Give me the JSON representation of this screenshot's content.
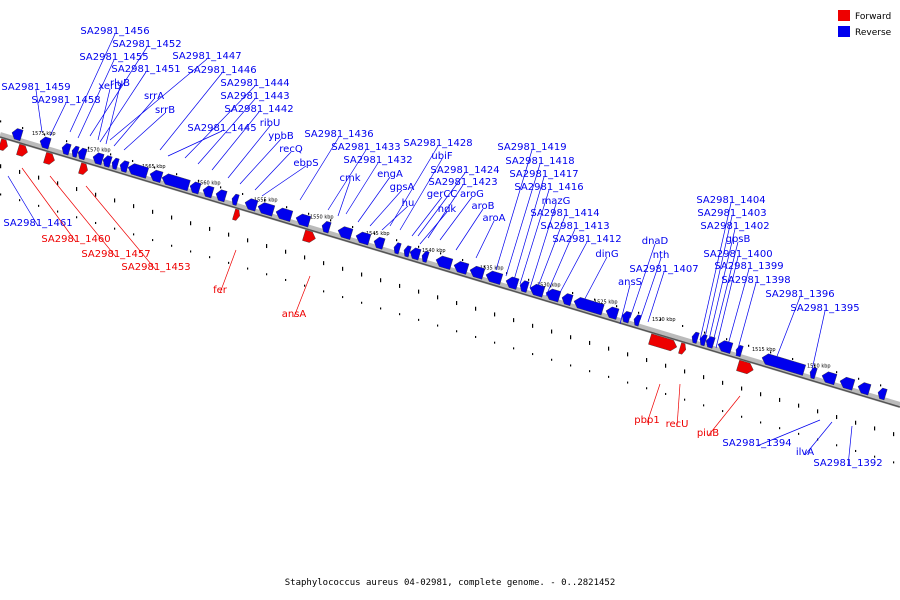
{
  "legend": {
    "forward": {
      "label": "Forward",
      "color": "#ee0000"
    },
    "reverse": {
      "label": "Reverse",
      "color": "#0000ee"
    }
  },
  "caption": "Staphylococcus aureus 04-02981, complete genome. - 0..2821452",
  "ticks": [
    "1575 kbp",
    "1570 kbp",
    "1565 kbp",
    "1560 kbp",
    "1555 kbp",
    "1550 kbp",
    "1545 kbp",
    "1540 kbp",
    "1535 kbp",
    "1530 kbp",
    "1525 kbp",
    "1520 kbp",
    "1515 kbp",
    "1510 kbp"
  ],
  "genes_reverse_above": [
    "SA2981_1456",
    "SA2981_1452",
    "SA2981_1455",
    "SA2981_1447",
    "SA2981_1451",
    "SA2981_1446",
    "xerD",
    "rluB",
    "SA2981_1444",
    "SA2981_1459",
    "srrA",
    "SA2981_1443",
    "SA2981_1458",
    "srrB",
    "SA2981_1442",
    "ribU",
    "SA2981_1445",
    "ypbB",
    "recQ",
    "SA2981_1436",
    "ebpS",
    "SA2981_1433",
    "SA2981_1428",
    "SA2981_1432",
    "ubiF",
    "cmk",
    "engA",
    "SA2981_1424",
    "SA2981_1423",
    "gpsA",
    "gerCC",
    "aroG",
    "hu",
    "ndk",
    "aroB",
    "aroA",
    "SA2981_1419",
    "SA2981_1418",
    "SA2981_1417",
    "SA2981_1416",
    "mazG",
    "SA2981_1414",
    "SA2981_1413",
    "SA2981_1412",
    "dinG",
    "dnaD",
    "nth",
    "SA2981_1407",
    "ansS",
    "SA2981_1404",
    "SA2981_1403",
    "SA2981_1402",
    "gpsB",
    "SA2981_1400",
    "SA2981_1399",
    "SA2981_1398",
    "SA2981_1396",
    "SA2981_1395"
  ],
  "genes_reverse_below": [
    "SA2981_1461",
    "SA2981_1394",
    "ilvA",
    "SA2981_1392"
  ],
  "genes_forward_below": [
    "SA2981_1460",
    "SA2981_1457",
    "SA2981_1453",
    "fer",
    "ansA",
    "pbp1",
    "recU",
    "piuB"
  ]
}
